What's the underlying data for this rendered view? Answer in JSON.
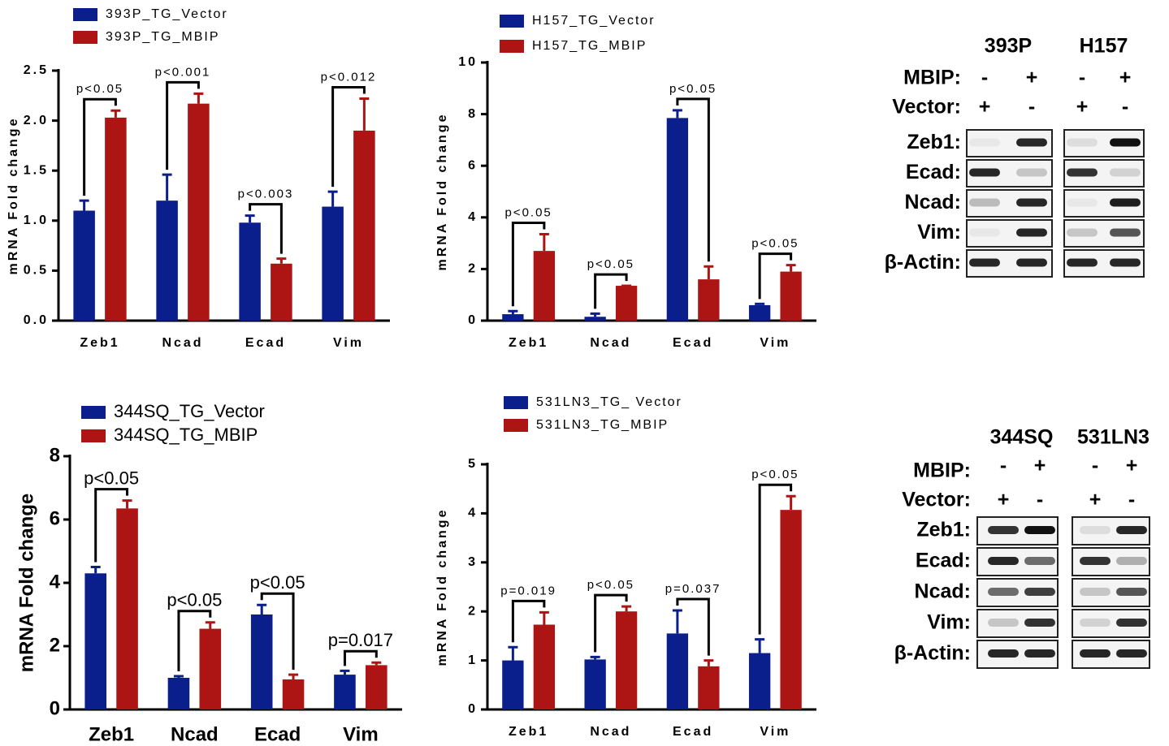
{
  "chart_data": [
    {
      "type": "bar",
      "ylabel": "mRNA Fold change",
      "categories": [
        "Zeb1",
        "Ncad",
        "Ecad",
        "Vim"
      ],
      "series": [
        {
          "name": "393P_TG_Vector",
          "color": "#0b1f8c",
          "values": [
            1.1,
            1.2,
            0.98,
            1.14
          ],
          "errors": [
            0.1,
            0.26,
            0.07,
            0.15
          ]
        },
        {
          "name": "393P_TG_MBIP",
          "color": "#ad1414",
          "values": [
            2.03,
            2.17,
            0.57,
            1.9
          ],
          "errors": [
            0.07,
            0.1,
            0.05,
            0.32
          ]
        }
      ],
      "annotations": [
        "p<0.05",
        "p<0.001",
        "p<0.003",
        "p<0.012"
      ],
      "ylim": [
        0,
        2.5
      ],
      "yticks": [
        {
          "value": 0,
          "label": "0.0"
        },
        0.5,
        {
          "value": 1,
          "label": "1.0"
        },
        1.5,
        {
          "value": 2,
          "label": "2.0"
        },
        2.5
      ]
    },
    {
      "type": "bar",
      "ylabel": "mRNA Fold change",
      "categories": [
        "Zeb1",
        "Ncad",
        "Ecad",
        "Vim"
      ],
      "series": [
        {
          "name": "H157_TG_Vector",
          "color": "#0b1f8c",
          "values": [
            0.25,
            0.15,
            7.85,
            0.6
          ],
          "errors": [
            0.12,
            0.12,
            0.3,
            0.05
          ]
        },
        {
          "name": "H157_TG_MBIP",
          "color": "#ad1414",
          "values": [
            2.7,
            1.35,
            1.6,
            1.9
          ],
          "errors": [
            0.65,
            0,
            0.5,
            0.25
          ]
        }
      ],
      "annotations": [
        "p<0.05",
        "p<0.05",
        "p<0.05",
        "p<0.05"
      ],
      "ylim": [
        0,
        10
      ],
      "yticks": [
        0,
        2,
        4,
        6,
        8,
        10
      ]
    },
    {
      "type": "bar",
      "ylabel": "mRNA Fold change",
      "categories": [
        "Zeb1",
        "Ncad",
        "Ecad",
        "Vim"
      ],
      "series": [
        {
          "name": "344SQ_TG_Vector",
          "color": "#0b1f8c",
          "values": [
            4.3,
            1.0,
            3.0,
            1.1
          ],
          "errors": [
            0.2,
            0.05,
            0.3,
            0.12
          ]
        },
        {
          "name": "344SQ_TG_MBIP",
          "color": "#ad1414",
          "values": [
            6.35,
            2.55,
            0.95,
            1.4
          ],
          "errors": [
            0.25,
            0.2,
            0.15,
            0.08
          ]
        }
      ],
      "annotations": [
        "p<0.05",
        "p<0.05",
        "p<0.05",
        "p=0.017"
      ],
      "ylim": [
        0,
        8
      ],
      "yticks": [
        0,
        2,
        4,
        6,
        8
      ]
    },
    {
      "type": "bar",
      "ylabel": "mRNA Fold change",
      "categories": [
        "Zeb1",
        "Ncad",
        "Ecad",
        "Vim"
      ],
      "series": [
        {
          "name": "531LN3_TG_ Vector",
          "color": "#0b1f8c",
          "values": [
            1.0,
            1.02,
            1.55,
            1.15
          ],
          "errors": [
            0.27,
            0.05,
            0.47,
            0.28
          ]
        },
        {
          "name": "531LN3_TG_MBIP",
          "color": "#ad1414",
          "values": [
            1.73,
            2.0,
            0.88,
            4.07
          ],
          "errors": [
            0.25,
            0.1,
            0.12,
            0.28
          ]
        }
      ],
      "annotations": [
        "p=0.019",
        "p<0.05",
        "p=0.037",
        "p<0.05"
      ],
      "ylim": [
        0,
        5
      ],
      "yticks": [
        0,
        1,
        2,
        3,
        4,
        5
      ]
    }
  ],
  "blots": [
    {
      "cell_lines": [
        "393P",
        "H157"
      ],
      "conditions": [
        {
          "label": "MBIP:",
          "signs": [
            "-",
            "+",
            "-",
            "+"
          ]
        },
        {
          "label": "Vector:",
          "signs": [
            "+",
            "-",
            "+",
            "-"
          ]
        }
      ],
      "proteins": [
        "Zeb1:",
        "Ecad:",
        "Ncad:",
        "Vim:",
        "β-Actin:"
      ]
    },
    {
      "cell_lines": [
        "344SQ",
        "531LN3"
      ],
      "conditions": [
        {
          "label": "MBIP:",
          "signs": [
            "-",
            "+",
            "-",
            "+"
          ]
        },
        {
          "label": "Vector:",
          "signs": [
            "+",
            "-",
            "+",
            "-"
          ]
        }
      ],
      "proteins": [
        "Zeb1:",
        "Ecad:",
        "Ncad:",
        "Vim:",
        "β-Actin:"
      ]
    }
  ]
}
